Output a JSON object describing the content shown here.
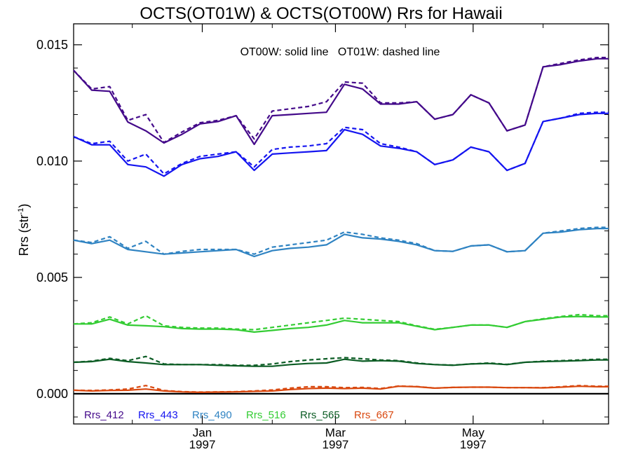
{
  "chart_data": {
    "type": "line",
    "title": "OCTS(OT01W) & OCTS(OT00W)  Rrs for Hawaii",
    "note": "OT00W: solid line   OT01W: dashed line",
    "ylabel": "Rrs (str⁻¹)",
    "ylim": [
      -0.0013,
      0.0159
    ],
    "yticks": [
      {
        "value": 0.0,
        "label": "0.000"
      },
      {
        "value": 0.005,
        "label": "0.005"
      },
      {
        "value": 0.01,
        "label": "0.010"
      },
      {
        "value": 0.015,
        "label": "0.015"
      }
    ],
    "x_date_range": [
      "1996-11-05",
      "1997-06-30"
    ],
    "xticks": [
      {
        "date": "1997-01-01",
        "label_month": "Jan",
        "label_year": "1997"
      },
      {
        "date": "1997-03-01",
        "label_month": "Mar",
        "label_year": "1997"
      },
      {
        "date": "1997-05-01",
        "label_month": "May",
        "label_year": "1997"
      }
    ],
    "x": [
      "1996-11-05",
      "1996-11-13",
      "1996-11-21",
      "1996-11-29",
      "1996-12-07",
      "1996-12-15",
      "1996-12-23",
      "1996-12-31",
      "1997-01-08",
      "1997-01-16",
      "1997-01-24",
      "1997-02-01",
      "1997-02-09",
      "1997-02-17",
      "1997-02-25",
      "1997-03-05",
      "1997-03-13",
      "1997-03-21",
      "1997-03-29",
      "1997-04-06",
      "1997-04-14",
      "1997-04-22",
      "1997-04-30",
      "1997-05-08",
      "1997-05-16",
      "1997-05-24",
      "1997-06-01",
      "1997-06-09",
      "1997-06-17",
      "1997-06-25",
      "1997-06-30"
    ],
    "zero_line": 0.0,
    "series": [
      {
        "name": "Rrs_412",
        "color": "#440a8a",
        "style": "solid",
        "values": [
          0.0139,
          0.01305,
          0.013,
          0.01168,
          0.0113,
          0.01078,
          0.01115,
          0.0116,
          0.0117,
          0.01195,
          0.01072,
          0.01195,
          0.012,
          0.01205,
          0.0121,
          0.0133,
          0.0131,
          0.01245,
          0.01245,
          0.01255,
          0.0118,
          0.012,
          0.01285,
          0.0125,
          0.0113,
          0.01155,
          0.01405,
          0.01415,
          0.0143,
          0.0144,
          0.0144
        ]
      },
      {
        "name": "Rrs_412",
        "color": "#440a8a",
        "style": "dashed",
        "values": [
          0.0139,
          0.0131,
          0.0132,
          0.01175,
          0.012,
          0.0108,
          0.01125,
          0.01165,
          0.01175,
          0.01195,
          0.01095,
          0.01215,
          0.01225,
          0.01235,
          0.01255,
          0.0134,
          0.01335,
          0.0125,
          0.0125,
          0.01255,
          0.0118,
          0.012,
          0.01285,
          0.0125,
          0.0113,
          0.01155,
          0.01405,
          0.0142,
          0.01435,
          0.01445,
          0.01445
        ]
      },
      {
        "name": "Rrs_443",
        "color": "#1515f0",
        "style": "solid",
        "values": [
          0.01105,
          0.0107,
          0.0107,
          0.00985,
          0.00975,
          0.00935,
          0.00985,
          0.0101,
          0.0102,
          0.0104,
          0.0096,
          0.0103,
          0.01035,
          0.0104,
          0.01045,
          0.01135,
          0.01115,
          0.01065,
          0.01055,
          0.0104,
          0.00985,
          0.01005,
          0.0106,
          0.0104,
          0.0096,
          0.0099,
          0.0117,
          0.01185,
          0.012,
          0.01205,
          0.01205
        ]
      },
      {
        "name": "Rrs_443",
        "color": "#1515f0",
        "style": "dashed",
        "values": [
          0.01105,
          0.01075,
          0.01085,
          0.01,
          0.0103,
          0.00945,
          0.0099,
          0.0102,
          0.0103,
          0.0104,
          0.00975,
          0.0105,
          0.0106,
          0.01065,
          0.01075,
          0.01145,
          0.01135,
          0.01075,
          0.0106,
          0.0104,
          0.00985,
          0.01005,
          0.0106,
          0.0104,
          0.0096,
          0.0099,
          0.0117,
          0.01185,
          0.01205,
          0.0121,
          0.0121
        ]
      },
      {
        "name": "Rrs_490",
        "color": "#2f83c2",
        "style": "solid",
        "values": [
          0.0066,
          0.00645,
          0.0066,
          0.0062,
          0.0061,
          0.006,
          0.00605,
          0.0061,
          0.00615,
          0.0062,
          0.0059,
          0.00615,
          0.00625,
          0.0063,
          0.0064,
          0.00685,
          0.0067,
          0.00665,
          0.00655,
          0.0064,
          0.00615,
          0.00612,
          0.00635,
          0.0064,
          0.0061,
          0.00615,
          0.0069,
          0.00695,
          0.00705,
          0.0071,
          0.0071
        ]
      },
      {
        "name": "Rrs_490",
        "color": "#2f83c2",
        "style": "dashed",
        "values": [
          0.0066,
          0.0065,
          0.00675,
          0.00625,
          0.00655,
          0.006,
          0.00612,
          0.0062,
          0.0062,
          0.0062,
          0.006,
          0.0063,
          0.0064,
          0.0065,
          0.0066,
          0.00695,
          0.00685,
          0.0067,
          0.0066,
          0.00645,
          0.00615,
          0.00612,
          0.00635,
          0.0064,
          0.0061,
          0.00615,
          0.0069,
          0.007,
          0.0071,
          0.00715,
          0.00715
        ]
      },
      {
        "name": "Rrs_516",
        "color": "#33cc33",
        "style": "solid",
        "values": [
          0.003,
          0.003,
          0.0032,
          0.00295,
          0.00292,
          0.00288,
          0.0028,
          0.00278,
          0.00278,
          0.00275,
          0.00265,
          0.00272,
          0.0028,
          0.00285,
          0.00295,
          0.00315,
          0.00305,
          0.00305,
          0.00305,
          0.0029,
          0.00275,
          0.00285,
          0.00295,
          0.00295,
          0.00285,
          0.0031,
          0.0032,
          0.0033,
          0.00332,
          0.0033,
          0.0033
        ]
      },
      {
        "name": "Rrs_516",
        "color": "#33cc33",
        "style": "dashed",
        "values": [
          0.003,
          0.00305,
          0.0033,
          0.003,
          0.00335,
          0.00292,
          0.00285,
          0.00282,
          0.00282,
          0.00278,
          0.00275,
          0.00285,
          0.00295,
          0.00305,
          0.00315,
          0.00325,
          0.0032,
          0.00315,
          0.0031,
          0.00292,
          0.00277,
          0.00285,
          0.00295,
          0.00295,
          0.00285,
          0.0031,
          0.00322,
          0.00332,
          0.0034,
          0.00335,
          0.00335
        ]
      },
      {
        "name": "Rrs_565",
        "color": "#0b5c24",
        "style": "solid",
        "values": [
          0.00135,
          0.00138,
          0.00148,
          0.00138,
          0.00132,
          0.00125,
          0.00125,
          0.00125,
          0.00122,
          0.0012,
          0.00118,
          0.00118,
          0.00125,
          0.0013,
          0.00132,
          0.00148,
          0.0014,
          0.00142,
          0.0014,
          0.0013,
          0.00125,
          0.00122,
          0.00128,
          0.0013,
          0.00125,
          0.00135,
          0.00138,
          0.0014,
          0.00142,
          0.00145,
          0.00145
        ]
      },
      {
        "name": "Rrs_565",
        "color": "#0b5c24",
        "style": "dashed",
        "values": [
          0.00135,
          0.0014,
          0.00152,
          0.00142,
          0.0016,
          0.00128,
          0.00125,
          0.00125,
          0.00125,
          0.00122,
          0.00122,
          0.00128,
          0.00138,
          0.00145,
          0.0015,
          0.00155,
          0.0015,
          0.00145,
          0.00142,
          0.00132,
          0.00125,
          0.00123,
          0.00128,
          0.00132,
          0.00126,
          0.00135,
          0.0014,
          0.00142,
          0.00145,
          0.00148,
          0.00148
        ]
      },
      {
        "name": "Rrs_667",
        "color": "#d9480f",
        "style": "solid",
        "values": [
          0.00015,
          0.00012,
          0.00014,
          0.00015,
          0.0002,
          0.00012,
          8e-05,
          6e-05,
          7e-05,
          8e-05,
          0.0001,
          0.00012,
          0.00018,
          0.00022,
          0.00024,
          0.00022,
          0.00024,
          0.0002,
          0.00032,
          0.0003,
          0.00024,
          0.00027,
          0.00028,
          0.00028,
          0.00026,
          0.00026,
          0.00025,
          0.00028,
          0.00032,
          0.0003,
          0.0003
        ]
      },
      {
        "name": "Rrs_667",
        "color": "#d9480f",
        "style": "dashed",
        "values": [
          0.00015,
          0.00014,
          0.00016,
          0.0002,
          0.00035,
          0.00014,
          9e-05,
          7e-05,
          8e-05,
          9e-05,
          0.00012,
          0.00016,
          0.00024,
          0.0003,
          0.0003,
          0.00026,
          0.00027,
          0.00022,
          0.00033,
          0.00031,
          0.00024,
          0.00027,
          0.00028,
          0.00028,
          0.00026,
          0.00026,
          0.00026,
          0.0003,
          0.00035,
          0.00032,
          0.00032
        ]
      }
    ],
    "legend": [
      {
        "label": "Rrs_412",
        "color": "#440a8a"
      },
      {
        "label": "Rrs_443",
        "color": "#1515f0"
      },
      {
        "label": "Rrs_490",
        "color": "#2f83c2"
      },
      {
        "label": "Rrs_516",
        "color": "#33cc33"
      },
      {
        "label": "Rrs_565",
        "color": "#0b5c24"
      },
      {
        "label": "Rrs_667",
        "color": "#d9480f"
      }
    ],
    "legend_placement": "bottom-left inside plot",
    "grid": false
  }
}
